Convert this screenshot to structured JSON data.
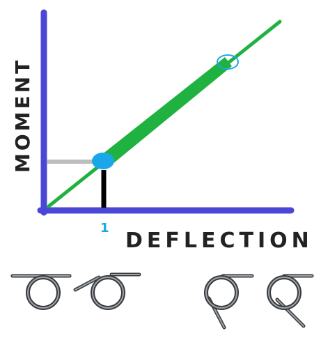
{
  "y_axis_label": "MOMENT",
  "x_axis_label": "DEFLECTION",
  "marker_label": "1",
  "colors": {
    "axis": "#4b47d6",
    "line": "#20b240",
    "marker": "#1aa7ea",
    "guide_h": "#bdbdbd",
    "guide_v": "#000000",
    "label_text": "#222222",
    "marker_text": "#1aa7ea",
    "spring_outer": "#3a3a3a",
    "spring_inner": "#9aa3ad"
  },
  "springs": [
    {
      "name": "spring-free-position"
    },
    {
      "name": "spring-slight-deflection"
    },
    {
      "name": "spring-partial-deflection"
    },
    {
      "name": "spring-full-deflection"
    }
  ]
}
